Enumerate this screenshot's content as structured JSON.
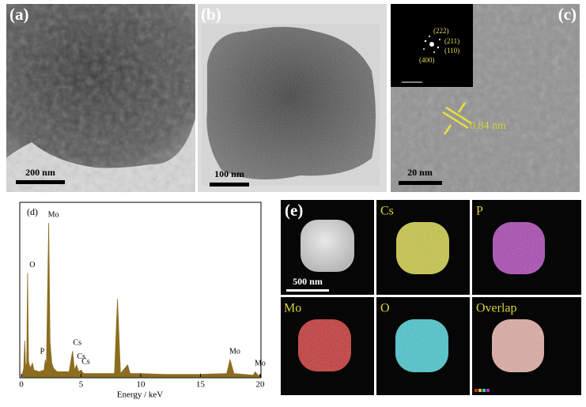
{
  "panels": {
    "a": {
      "label": "(a)",
      "scale": "200 nm"
    },
    "b": {
      "label": "(b)",
      "scale": "100 nm"
    },
    "c": {
      "label": "(c)",
      "scale": "20 nm",
      "spacing": "0.84 nm",
      "planes": [
        "(222)",
        "(211)",
        "(110)",
        "(400)"
      ]
    },
    "e": {
      "label": "(e)",
      "scale": "500 nm",
      "maps": [
        "Cs",
        "P",
        "Mo",
        "O",
        "Overlap"
      ]
    }
  },
  "chart_data": {
    "type": "area",
    "label": "(d)",
    "x_label": "Energy / keV",
    "color": "#8c6d1f",
    "x": [
      0,
      0.1,
      0.2,
      0.28,
      0.36,
      0.45,
      0.52,
      0.6,
      0.75,
      0.93,
      1.05,
      1.5,
      1.9,
      2.01,
      2.1,
      2.29,
      2.4,
      2.55,
      2.7,
      3,
      3.5,
      4.0,
      4.29,
      4.45,
      4.62,
      4.8,
      5.0,
      5.2,
      6,
      7,
      7.8,
      8.05,
      8.3,
      8.9,
      9.1,
      10,
      12,
      15,
      17.2,
      17.48,
      17.8,
      19.4,
      19.6,
      19.8,
      20
    ],
    "values": [
      0,
      2,
      5,
      21,
      6,
      8,
      60,
      9,
      5,
      8,
      4,
      3,
      4,
      10,
      6,
      89,
      20,
      8,
      5,
      3,
      3,
      3,
      15,
      4,
      7,
      3,
      4,
      2,
      2,
      2,
      2,
      45,
      2,
      7,
      2,
      2,
      1.5,
      1.5,
      2,
      10,
      2,
      1,
      3,
      1,
      1
    ],
    "xlim": [
      0,
      20
    ],
    "ylim": [
      0,
      100
    ],
    "xticks": [
      0,
      5,
      10,
      15,
      20
    ],
    "annotations": [
      {
        "text": "O",
        "x": 0.52
      },
      {
        "text": "Mo",
        "x": 2.29
      },
      {
        "text": "P",
        "x": 2.01
      },
      {
        "text": "Cs",
        "x": 4.29
      },
      {
        "text": "Cs",
        "x": 4.62
      },
      {
        "text": "Cs",
        "x": 5.0
      },
      {
        "text": "Mo",
        "x": 17.48
      },
      {
        "text": "Mo",
        "x": 19.6
      }
    ]
  }
}
